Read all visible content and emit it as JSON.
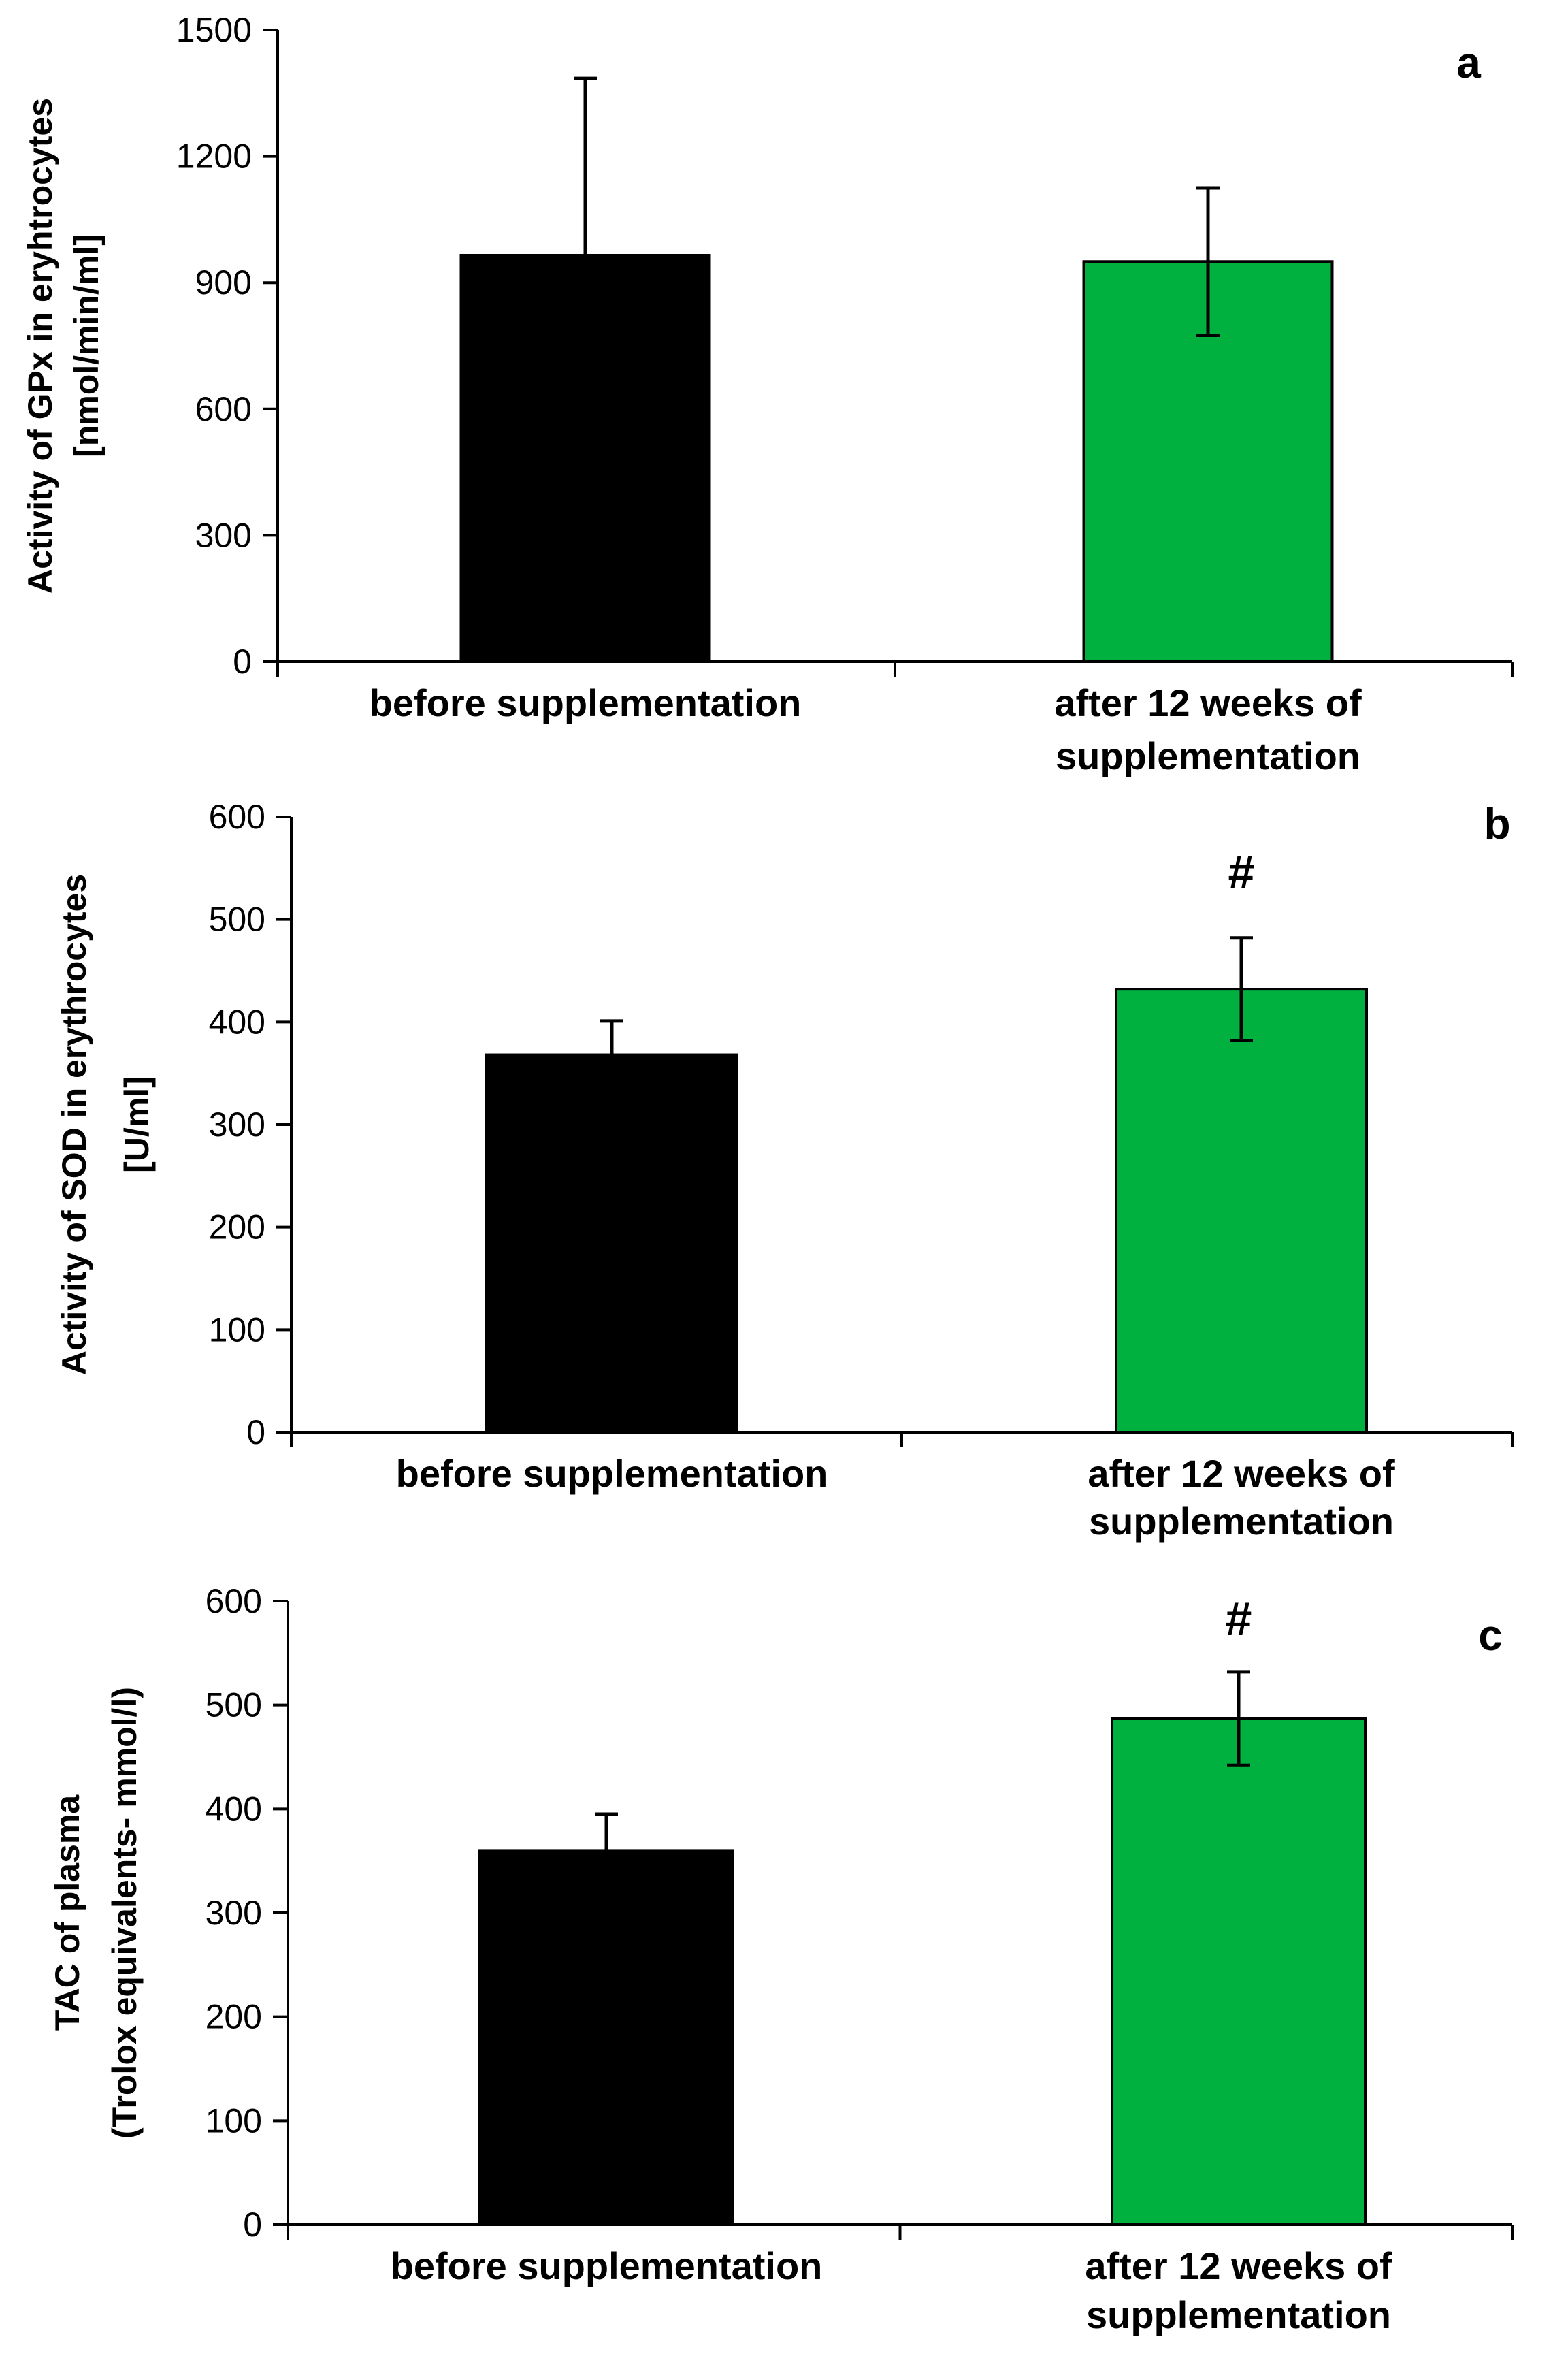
{
  "figure": {
    "description_free": true
  },
  "chart_data": [
    {
      "type": "bar",
      "panel_label": "a",
      "ylabel_lines": [
        "Activity of GPx in eryhtrocytes",
        "[nmol/min/ml]"
      ],
      "ylim": [
        0,
        1500
      ],
      "yticks": [
        0,
        300,
        600,
        900,
        1200,
        1500
      ],
      "categories": [
        [
          "before supplementation"
        ],
        [
          "after 12 weeks of",
          "supplementation"
        ]
      ],
      "values": [
        965,
        950
      ],
      "errors": [
        420,
        175
      ],
      "colors": [
        "#000000",
        "#00b140"
      ],
      "significance": [
        "",
        ""
      ]
    },
    {
      "type": "bar",
      "panel_label": "b",
      "ylabel_lines": [
        "Activity of SOD in erythrocytes",
        "[U/ml]"
      ],
      "ylim": [
        0,
        600
      ],
      "yticks": [
        0,
        100,
        200,
        300,
        400,
        500,
        600
      ],
      "categories": [
        [
          "before supplementation"
        ],
        [
          "after 12 weeks of",
          "supplementation"
        ]
      ],
      "values": [
        368,
        432
      ],
      "errors": [
        33,
        50
      ],
      "colors": [
        "#000000",
        "#00b140"
      ],
      "significance": [
        "",
        "#"
      ]
    },
    {
      "type": "bar",
      "panel_label": "c",
      "ylabel_lines": [
        "TAC of plasma",
        "(Trolox equivalents- mmol/l)"
      ],
      "ylim": [
        0,
        600
      ],
      "yticks": [
        0,
        100,
        200,
        300,
        400,
        500,
        600
      ],
      "categories": [
        [
          "before supplementation"
        ],
        [
          "after 12 weeks of",
          "supplementation"
        ]
      ],
      "values": [
        360,
        487
      ],
      "errors": [
        35,
        45
      ],
      "colors": [
        "#000000",
        "#00b140"
      ],
      "significance": [
        "",
        "#"
      ]
    }
  ]
}
